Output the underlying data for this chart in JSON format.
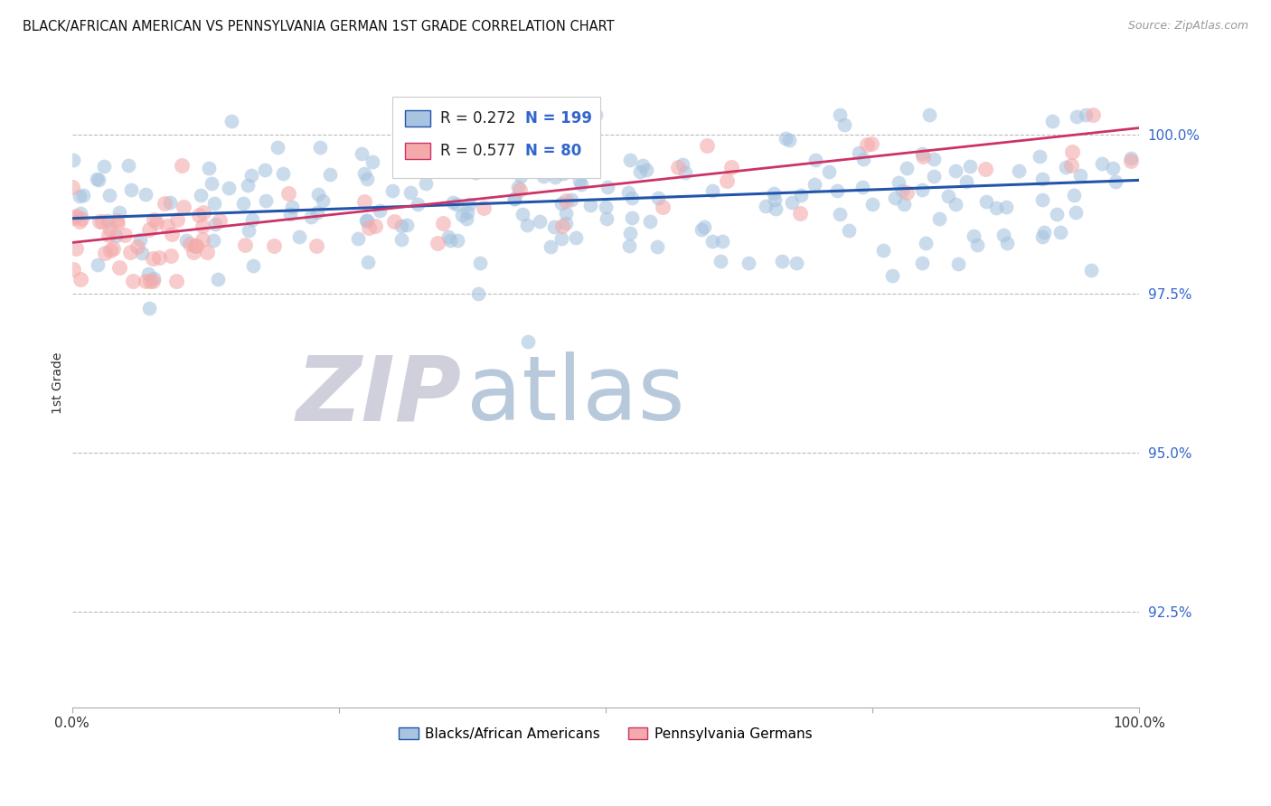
{
  "title": "BLACK/AFRICAN AMERICAN VS PENNSYLVANIA GERMAN 1ST GRADE CORRELATION CHART",
  "source": "Source: ZipAtlas.com",
  "ylabel": "1st Grade",
  "ylabel_right_labels": [
    "100.0%",
    "97.5%",
    "95.0%",
    "92.5%"
  ],
  "ylabel_right_values": [
    1.0,
    0.975,
    0.95,
    0.925
  ],
  "legend_blue_label": "Blacks/African Americans",
  "legend_pink_label": "Pennsylvania Germans",
  "R_blue": 0.272,
  "N_blue": 199,
  "R_pink": 0.577,
  "N_pink": 80,
  "blue_color": "#A8C4E0",
  "pink_color": "#F4AAAA",
  "blue_line_color": "#2255AA",
  "pink_line_color": "#CC3366",
  "xmin": 0.0,
  "xmax": 1.0,
  "ymin": 0.91,
  "ymax": 1.012,
  "watermark_zip": "ZIP",
  "watermark_atlas": "atlas",
  "background_color": "#FFFFFF",
  "grid_color": "#BBBBBB",
  "title_color": "#111111",
  "axis_label_color": "#333333",
  "right_axis_color": "#3366CC",
  "blue_line_y0": 0.9868,
  "blue_line_y1": 0.9928,
  "pink_line_y0": 0.983,
  "pink_line_y1": 1.001
}
